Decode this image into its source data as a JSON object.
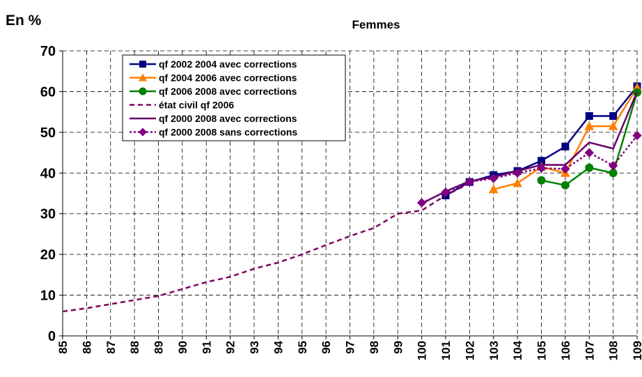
{
  "chart_data": {
    "type": "line",
    "title": "Femmes",
    "y_label": "En %",
    "x": [
      85,
      86,
      87,
      88,
      89,
      90,
      91,
      92,
      93,
      94,
      95,
      96,
      97,
      98,
      99,
      100,
      101,
      102,
      103,
      104,
      105,
      106,
      107,
      108,
      109
    ],
    "xlim": [
      85,
      109
    ],
    "xticks": [
      85,
      86,
      87,
      88,
      89,
      90,
      91,
      92,
      93,
      94,
      95,
      96,
      97,
      98,
      99,
      100,
      101,
      102,
      103,
      104,
      105,
      106,
      107,
      108,
      109
    ],
    "ylim": [
      0,
      70
    ],
    "yticks": [
      0,
      10,
      20,
      30,
      40,
      50,
      60,
      70
    ],
    "grid": true,
    "legend": "upper left",
    "series": [
      {
        "name": "qf 2002 2004 avec corrections",
        "color": "#000080",
        "marker": "square",
        "dash": "solid",
        "values": [
          null,
          null,
          null,
          null,
          null,
          null,
          null,
          null,
          null,
          null,
          null,
          null,
          null,
          null,
          null,
          null,
          34.5,
          37.8,
          39.5,
          40.5,
          43,
          46.5,
          54,
          54,
          61.3
        ]
      },
      {
        "name": "qf 2004 2006 avec corrections",
        "color": "#ff8000",
        "marker": "triangle",
        "dash": "solid",
        "values": [
          null,
          null,
          null,
          null,
          null,
          null,
          null,
          null,
          null,
          null,
          null,
          null,
          null,
          null,
          null,
          null,
          null,
          null,
          36,
          37.5,
          41.5,
          40,
          51.5,
          51.5,
          61
        ]
      },
      {
        "name": "qf 2006 2008 avec corrections",
        "color": "#008000",
        "marker": "circle",
        "dash": "solid",
        "values": [
          null,
          null,
          null,
          null,
          null,
          null,
          null,
          null,
          null,
          null,
          null,
          null,
          null,
          null,
          null,
          null,
          null,
          null,
          null,
          null,
          38.2,
          37,
          41.3,
          40,
          59.8
        ]
      },
      {
        "name": "état civil qf 2006",
        "color": "#800060",
        "marker": "none",
        "dash": "dashed",
        "values": [
          6,
          6.8,
          7.8,
          8.8,
          9.8,
          11.5,
          13.2,
          14.5,
          16.5,
          18,
          20,
          22.3,
          24.5,
          26.5,
          30,
          30.8,
          34.5,
          37.5,
          null,
          null,
          null,
          null,
          null,
          null,
          null
        ]
      },
      {
        "name": "qf 2000 2008 avec corrections",
        "color": "#660066",
        "marker": "none",
        "dash": "solid",
        "values": [
          null,
          null,
          null,
          null,
          null,
          null,
          null,
          null,
          null,
          null,
          null,
          null,
          null,
          null,
          null,
          32.5,
          35.5,
          38,
          39,
          40.5,
          42,
          42,
          47.5,
          46,
          60
        ]
      },
      {
        "name": "qf 2000 2008 sans corrections",
        "color": "#800080",
        "marker": "diamond",
        "dash": "dotted",
        "values": [
          null,
          null,
          null,
          null,
          null,
          null,
          null,
          null,
          null,
          null,
          null,
          null,
          null,
          null,
          null,
          32.7,
          35.3,
          37.8,
          38.7,
          40,
          41.2,
          41,
          45,
          41.8,
          49.2
        ]
      }
    ]
  }
}
